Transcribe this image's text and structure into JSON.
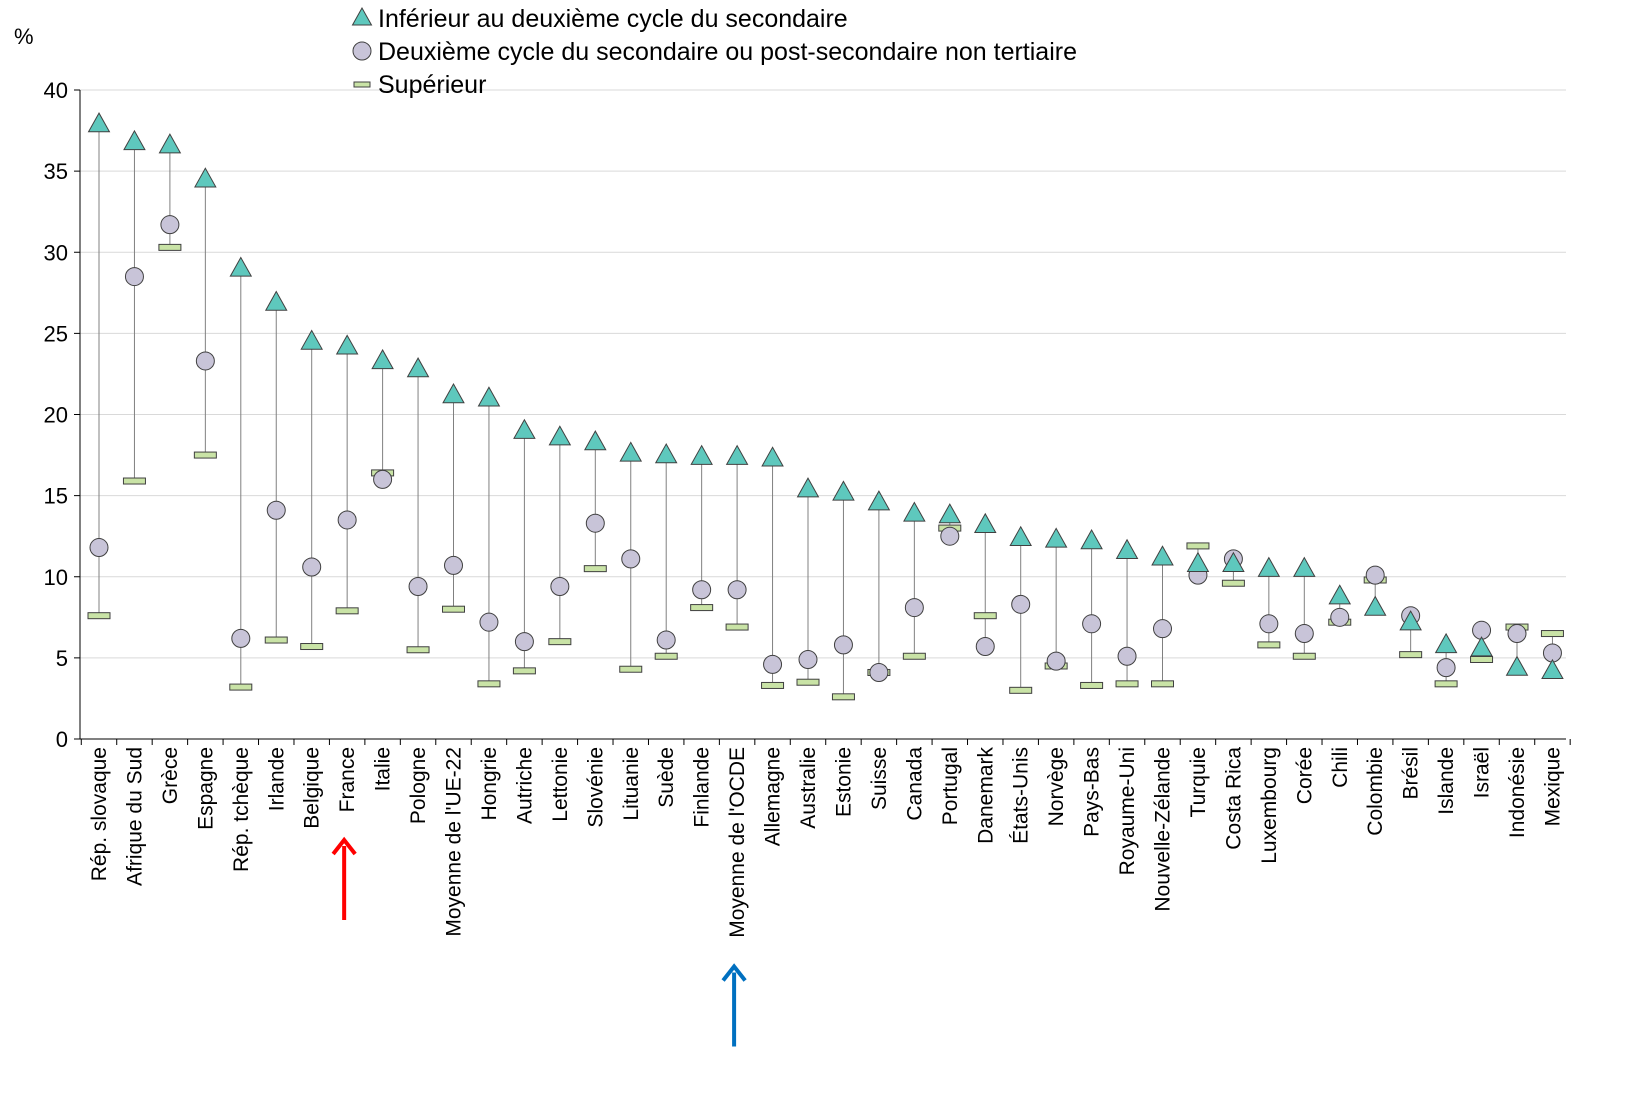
{
  "chart_data": {
    "type": "scatter",
    "ylabel": "%",
    "ylim": [
      0,
      40
    ],
    "yticks": [
      0,
      5,
      10,
      15,
      20,
      25,
      30,
      35,
      40
    ],
    "grid": true,
    "legend_position": "top-center",
    "categories": [
      "Rép. slovaque",
      "Afrique du Sud",
      "Grèce",
      "Espagne",
      "Rép. tchèque",
      "Irlande",
      "Belgique",
      "France",
      "Italie",
      "Pologne",
      "Moyenne de l'UE-22",
      "Hongrie",
      "Autriche",
      "Lettonie",
      "Slovénie",
      "Lituanie",
      "Suède",
      "Finlande",
      "Moyenne de l'OCDE",
      "Allemagne",
      "Australie",
      "Estonie",
      "Suisse",
      "Canada",
      "Portugal",
      "Danemark",
      "États-Unis",
      "Norvège",
      "Pays-Bas",
      "Royaume-Uni",
      "Nouvelle-Zélande",
      "Turquie",
      "Costa Rica",
      "Luxembourg",
      "Corée",
      "Chili",
      "Colombie",
      "Brésil",
      "Islande",
      "Israël",
      "Indonésie",
      "Mexique"
    ],
    "series": [
      {
        "name": "Inférieur au deuxième cycle du secondaire",
        "marker": "triangle",
        "color": "#5ec8bd",
        "values": [
          37.9,
          36.8,
          36.6,
          34.5,
          29.0,
          26.9,
          24.5,
          24.2,
          23.3,
          22.8,
          21.2,
          21.0,
          19.0,
          18.6,
          18.3,
          17.6,
          17.5,
          17.4,
          17.4,
          17.3,
          15.4,
          15.2,
          14.6,
          13.9,
          13.8,
          13.2,
          12.4,
          12.3,
          12.2,
          11.6,
          11.2,
          10.8,
          10.8,
          10.5,
          10.5,
          8.8,
          8.1,
          7.2,
          5.8,
          5.6,
          4.4,
          4.2
        ]
      },
      {
        "name": "Deuxième cycle du secondaire ou post-secondaire non tertiaire",
        "marker": "circle",
        "color": "#c8c4d8",
        "values": [
          11.8,
          28.5,
          31.7,
          23.3,
          6.2,
          14.1,
          10.6,
          13.5,
          16.0,
          9.4,
          10.7,
          7.2,
          6.0,
          9.4,
          13.3,
          11.1,
          6.1,
          9.2,
          9.2,
          4.6,
          4.9,
          5.8,
          4.1,
          8.1,
          12.5,
          5.7,
          8.3,
          4.8,
          7.1,
          5.1,
          6.8,
          10.1,
          11.1,
          7.1,
          6.5,
          7.5,
          10.1,
          7.6,
          4.4,
          6.7,
          6.5,
          5.3
        ]
      },
      {
        "name": "Supérieur",
        "marker": "dash",
        "color": "#c9e3a6",
        "values": [
          7.6,
          15.9,
          30.3,
          17.5,
          3.2,
          6.1,
          5.7,
          7.9,
          16.4,
          5.5,
          8.0,
          3.4,
          4.2,
          6.0,
          10.5,
          4.3,
          5.1,
          8.1,
          6.9,
          3.3,
          3.5,
          2.6,
          4.1,
          5.1,
          13.0,
          7.6,
          3.0,
          4.5,
          3.3,
          3.4,
          3.4,
          11.9,
          9.6,
          5.8,
          5.1,
          7.2,
          9.8,
          5.2,
          3.4,
          4.9,
          6.9,
          6.5
        ]
      }
    ],
    "arrows": [
      {
        "category": "France",
        "color": "#ff0000"
      },
      {
        "category": "Moyenne de l'OCDE",
        "color": "#0070c0"
      }
    ]
  }
}
